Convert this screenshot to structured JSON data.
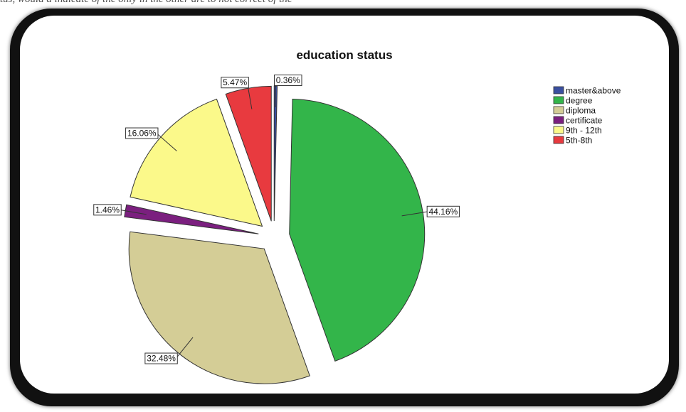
{
  "caption_fragment": "tus, would a indicate of the only in the other are to not correct of the",
  "chart_data": {
    "type": "pie",
    "title": "education status",
    "legend_position": "right",
    "slices": [
      {
        "name": "master&above",
        "value": 0.36,
        "label": "0.36%",
        "color": "#3a4fa0"
      },
      {
        "name": "degree",
        "value": 44.16,
        "label": "44.16%",
        "color": "#33b54a"
      },
      {
        "name": "diploma",
        "value": 32.48,
        "label": "32.48%",
        "color": "#d4cd96"
      },
      {
        "name": "certificate",
        "value": 1.46,
        "label": "1.46%",
        "color": "#7b1f7f"
      },
      {
        "name": "9th - 12th",
        "value": 16.06,
        "label": "16.06%",
        "color": "#fbf98a"
      },
      {
        "name": "5th-8th",
        "value": 5.47,
        "label": "5.47%",
        "color": "#e83a3f"
      }
    ]
  }
}
